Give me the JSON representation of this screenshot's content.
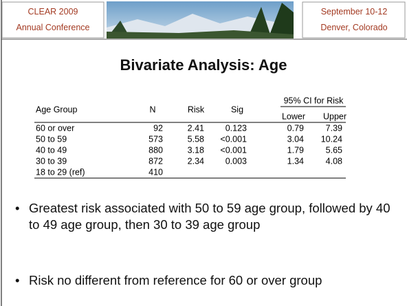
{
  "header": {
    "left": [
      "CLEAR 2009",
      "Annual Conference"
    ],
    "right": [
      "September 10-12",
      "Denver, Colorado"
    ]
  },
  "title": "Bivariate Analysis: Age",
  "table": {
    "columns": [
      "Age Group",
      "N",
      "Risk",
      "Sig"
    ],
    "ci_header": "95% CI for Risk",
    "ci_columns": [
      "Lower",
      "Upper"
    ],
    "rows": [
      [
        "60 or over",
        "92",
        "2.41",
        "0.123",
        "0.79",
        "7.39"
      ],
      [
        "50 to 59",
        "573",
        "5.58",
        "<0.001",
        "3.04",
        "10.24"
      ],
      [
        "40 to 49",
        "880",
        "3.18",
        "<0.001",
        "1.79",
        "5.65"
      ],
      [
        "30 to 39",
        "872",
        "2.34",
        "0.003",
        "1.34",
        "4.08"
      ],
      [
        "18 to 29 (ref)",
        "410"
      ]
    ]
  },
  "bullets": [
    "Greatest risk associated with 50 to 59 age group, followed by 40 to 49 age group, then 30 to 39 age group",
    "Risk no different from reference for 60 or over group"
  ]
}
